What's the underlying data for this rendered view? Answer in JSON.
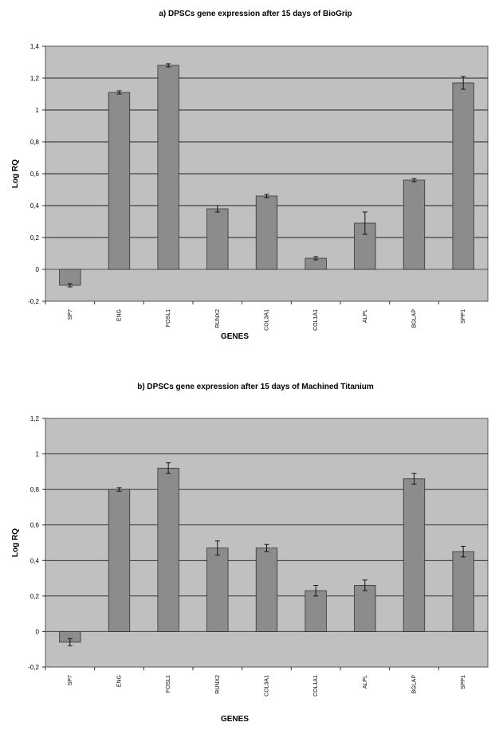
{
  "chart_data": [
    {
      "type": "bar",
      "title": "a) DPSCs gene expression after 15 days of BioGrip",
      "xlabel": "GENES",
      "ylabel": "Log RQ",
      "ylim": [
        -0.2,
        1.4
      ],
      "yticks": [
        -0.2,
        0,
        0.2,
        0.4,
        0.6,
        0.8,
        1,
        1.2,
        1.4
      ],
      "ytick_labels": [
        "-0,2",
        "0",
        "0,2",
        "0,4",
        "0,6",
        "0,8",
        "1",
        "1,2",
        "1,4"
      ],
      "grid": true,
      "categories": [
        "SP7",
        "ENG",
        "FOSL1",
        "RUNX2",
        "COL3A1",
        "COL1A1",
        "ALPL",
        "BGLAP",
        "SPP1"
      ],
      "values": [
        -0.1,
        1.11,
        1.28,
        0.38,
        0.46,
        0.07,
        0.29,
        0.56,
        1.17
      ],
      "errors": [
        0.01,
        0.01,
        0.01,
        0.02,
        0.01,
        0.01,
        0.07,
        0.01,
        0.04
      ],
      "colors": {
        "bar": "#8c8c8c",
        "plot_bg": "#c0c0c0",
        "grid": "#222222"
      }
    },
    {
      "type": "bar",
      "title": "b) DPSCs gene expression after 15 days of Machined Titanium",
      "xlabel": "GENES",
      "ylabel": "Log RQ",
      "ylim": [
        -0.2,
        1.2
      ],
      "yticks": [
        -0.2,
        0,
        0.2,
        0.4,
        0.6,
        0.8,
        1,
        1.2
      ],
      "ytick_labels": [
        "-0,2",
        "0",
        "0,2",
        "0,4",
        "0,6",
        "0,8",
        "1",
        "1,2"
      ],
      "grid": true,
      "categories": [
        "SP7",
        "ENG",
        "FOSL1",
        "RUNX2",
        "COL3A1",
        "COL1A1",
        "ALPL",
        "BGLAP",
        "SPP1"
      ],
      "values": [
        -0.06,
        0.8,
        0.92,
        0.47,
        0.47,
        0.23,
        0.26,
        0.86,
        0.45
      ],
      "errors": [
        0.02,
        0.01,
        0.03,
        0.04,
        0.02,
        0.03,
        0.03,
        0.03,
        0.03
      ],
      "colors": {
        "bar": "#8c8c8c",
        "plot_bg": "#c0c0c0",
        "grid": "#222222"
      }
    }
  ]
}
